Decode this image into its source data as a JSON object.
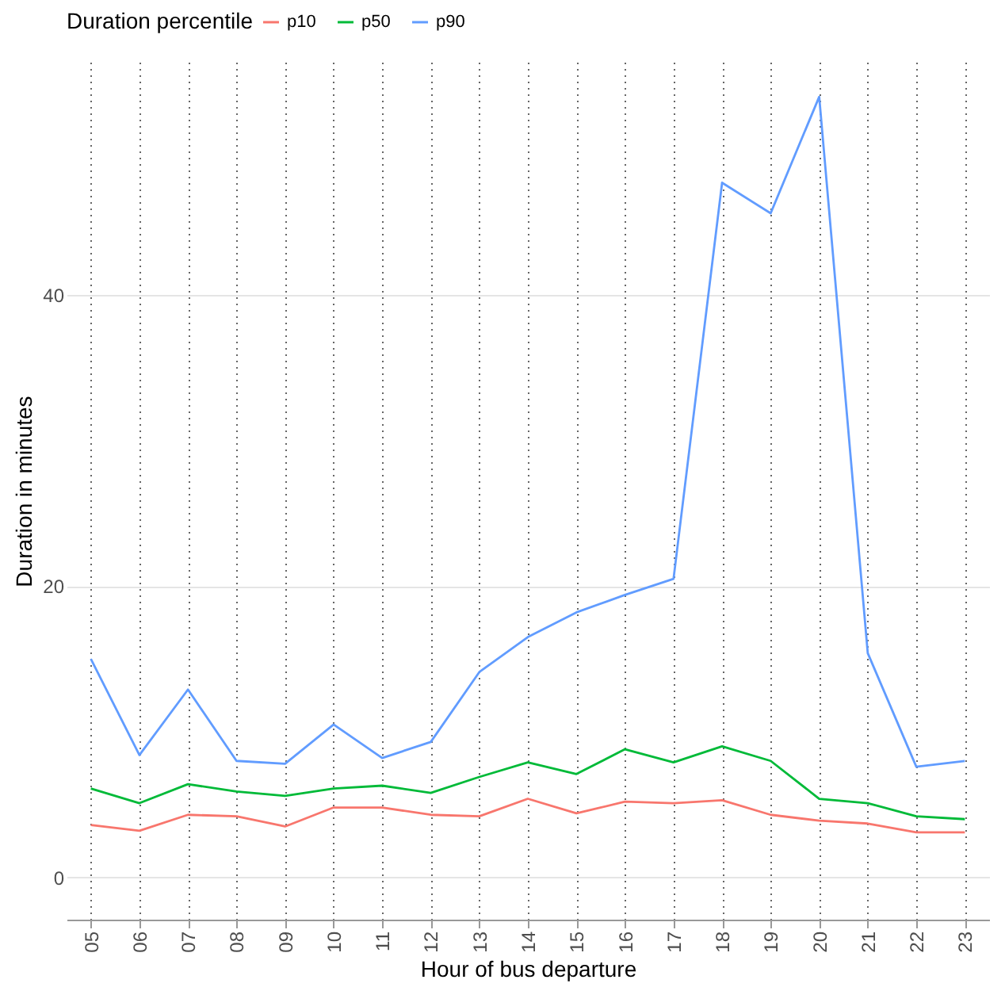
{
  "chart_data": {
    "type": "line",
    "xlabel": "Hour of bus departure",
    "ylabel": "Duration in minutes",
    "legend_title": "Duration percentile",
    "categories": [
      "05",
      "06",
      "07",
      "08",
      "09",
      "10",
      "11",
      "12",
      "13",
      "14",
      "15",
      "16",
      "17",
      "18",
      "19",
      "20",
      "21",
      "22",
      "23"
    ],
    "series": [
      {
        "name": "p10",
        "color": "#f8766d",
        "values": [
          3.6,
          3.2,
          4.3,
          4.2,
          3.5,
          4.8,
          4.8,
          4.3,
          4.2,
          5.4,
          4.4,
          5.2,
          5.1,
          5.3,
          4.3,
          3.9,
          3.7,
          3.1,
          3.1
        ]
      },
      {
        "name": "p50",
        "color": "#00ba38",
        "values": [
          6.1,
          5.1,
          6.4,
          5.9,
          5.6,
          6.1,
          6.3,
          5.8,
          6.9,
          7.9,
          7.1,
          8.8,
          7.9,
          9.0,
          8.0,
          5.4,
          5.1,
          4.2,
          4.0
        ]
      },
      {
        "name": "p90",
        "color": "#619cff",
        "values": [
          15.0,
          8.4,
          12.9,
          8.0,
          7.8,
          10.5,
          8.2,
          9.3,
          14.1,
          16.5,
          18.2,
          19.4,
          20.5,
          47.7,
          45.6,
          53.6,
          15.4,
          7.6,
          8.0
        ]
      }
    ],
    "ylim": [
      -2.9,
      56
    ],
    "yticks": [
      0,
      20,
      40
    ],
    "grid": true,
    "legend": "top",
    "line_style": "solid",
    "marker": "none"
  }
}
